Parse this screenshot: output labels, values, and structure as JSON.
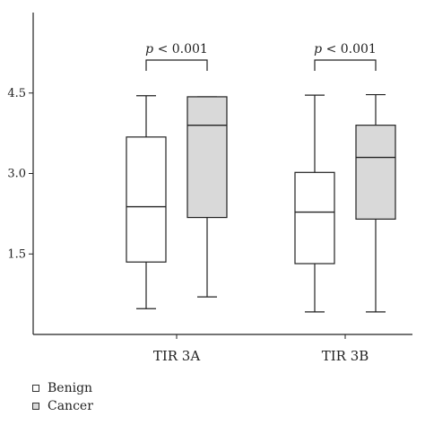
{
  "chart_data": {
    "type": "box",
    "ylim": [
      0,
      6.0
    ],
    "yticks": [
      1.5,
      3.0,
      4.5
    ],
    "ytick_labels": [
      "1.5",
      "3.0",
      "4.5"
    ],
    "categories": [
      "TIR 3A",
      "TIR 3B"
    ],
    "series": [
      {
        "name": "Benign",
        "color": "#ffffff",
        "boxes": [
          {
            "whisker_low": 0.48,
            "q1": 1.35,
            "median": 2.38,
            "q3": 3.68,
            "whisker_high": 4.45
          },
          {
            "whisker_low": 0.42,
            "q1": 1.32,
            "median": 2.28,
            "q3": 3.02,
            "whisker_high": 4.46
          }
        ]
      },
      {
        "name": "Cancer",
        "color": "#d9d9d9",
        "boxes": [
          {
            "whisker_low": 0.7,
            "q1": 2.18,
            "median": 3.9,
            "q3": 4.43,
            "whisker_high": 4.43
          },
          {
            "whisker_low": 0.42,
            "q1": 2.15,
            "median": 3.3,
            "q3": 3.9,
            "whisker_high": 4.47
          }
        ]
      }
    ],
    "annotations": [
      {
        "category": "TIR 3A",
        "text_prefix": "p",
        "text": " < 0.001"
      },
      {
        "category": "TIR 3B",
        "text_prefix": "p",
        "text": " < 0.001"
      }
    ],
    "legend": {
      "position": "bottom-left",
      "entries": [
        "Benign",
        "Cancer"
      ]
    }
  }
}
